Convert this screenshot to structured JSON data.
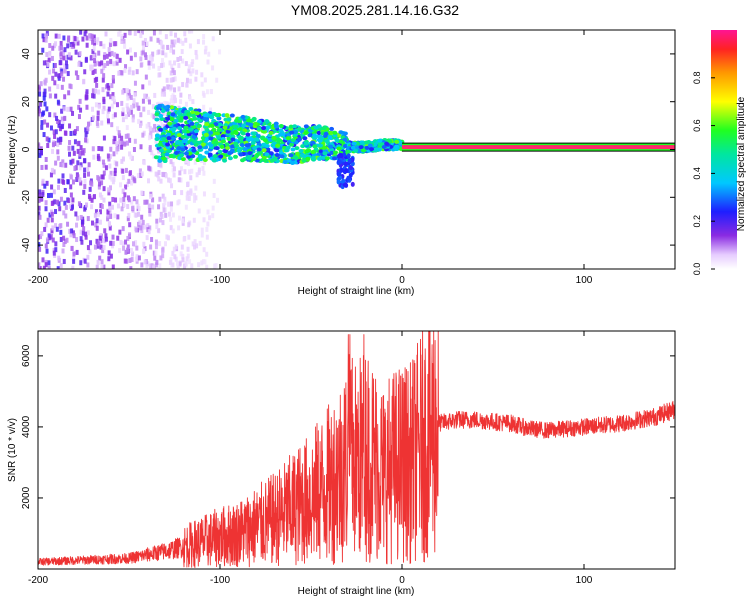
{
  "title": "YM08.2025.281.14.16.G32",
  "colors": {
    "snr_line": "#ee3333",
    "carrier": "#ff2a6a",
    "carrier_edge": "#000000"
  },
  "chart_data": [
    {
      "type": "heatmap",
      "name": "spectrogram",
      "xlabel": "Height of straight line (km)",
      "ylabel": "Frequency (Hz)",
      "xlim": [
        -200,
        150
      ],
      "ylim": [
        -50,
        50
      ],
      "xticks": [
        -200,
        -100,
        0,
        100
      ],
      "yticks": [
        -40,
        -20,
        0,
        20,
        40
      ],
      "description_series": [
        {
          "name": "noise",
          "x_range": [
            -200,
            -95
          ],
          "y_range": [
            -50,
            50
          ],
          "amplitude": 0.15
        },
        {
          "name": "scintillation-band",
          "x": [
            -135,
            -110,
            -80,
            -60,
            -45,
            -30,
            -20,
            -10,
            0
          ],
          "center_hz": [
            7,
            6,
            4,
            2,
            3,
            1,
            1,
            2,
            2
          ],
          "amplitude": 0.45
        },
        {
          "name": "carrier",
          "x_range": [
            0,
            150
          ],
          "center_hz": 1,
          "amplitude": 1.0
        }
      ],
      "colorbar": {
        "label": "Normalized spectral amplitude",
        "range": [
          0.0,
          1.0
        ],
        "ticks": [
          "0.0",
          "0.2",
          "0.4",
          "0.6",
          "0.8"
        ]
      }
    },
    {
      "type": "line",
      "name": "snr",
      "xlabel": "Height of straight line (km)",
      "ylabel": "SNR (10 * v/v)",
      "xlim": [
        -200,
        150
      ],
      "ylim": [
        0,
        6700
      ],
      "xticks": [
        -200,
        -100,
        0,
        100
      ],
      "yticks": [
        2000,
        4000,
        6000
      ],
      "series": [
        {
          "name": "SNR",
          "x": [
            -200,
            -175,
            -150,
            -130,
            -115,
            -100,
            -90,
            -80,
            -70,
            -60,
            -50,
            -40,
            -35,
            -28,
            -25,
            -20,
            -15,
            -10,
            -5,
            0,
            5,
            10,
            15,
            20,
            30,
            40,
            50,
            60,
            70,
            80,
            90,
            100,
            110,
            120,
            130,
            140,
            150
          ],
          "y": [
            200,
            250,
            300,
            500,
            700,
            900,
            1000,
            1200,
            1400,
            1700,
            2000,
            2400,
            2700,
            3200,
            3000,
            3300,
            3000,
            2700,
            2900,
            3000,
            3000,
            3400,
            3800,
            4100,
            4200,
            4200,
            4150,
            4100,
            3950,
            3900,
            3950,
            4000,
            4050,
            4100,
            4200,
            4300,
            4500
          ]
        }
      ]
    }
  ]
}
